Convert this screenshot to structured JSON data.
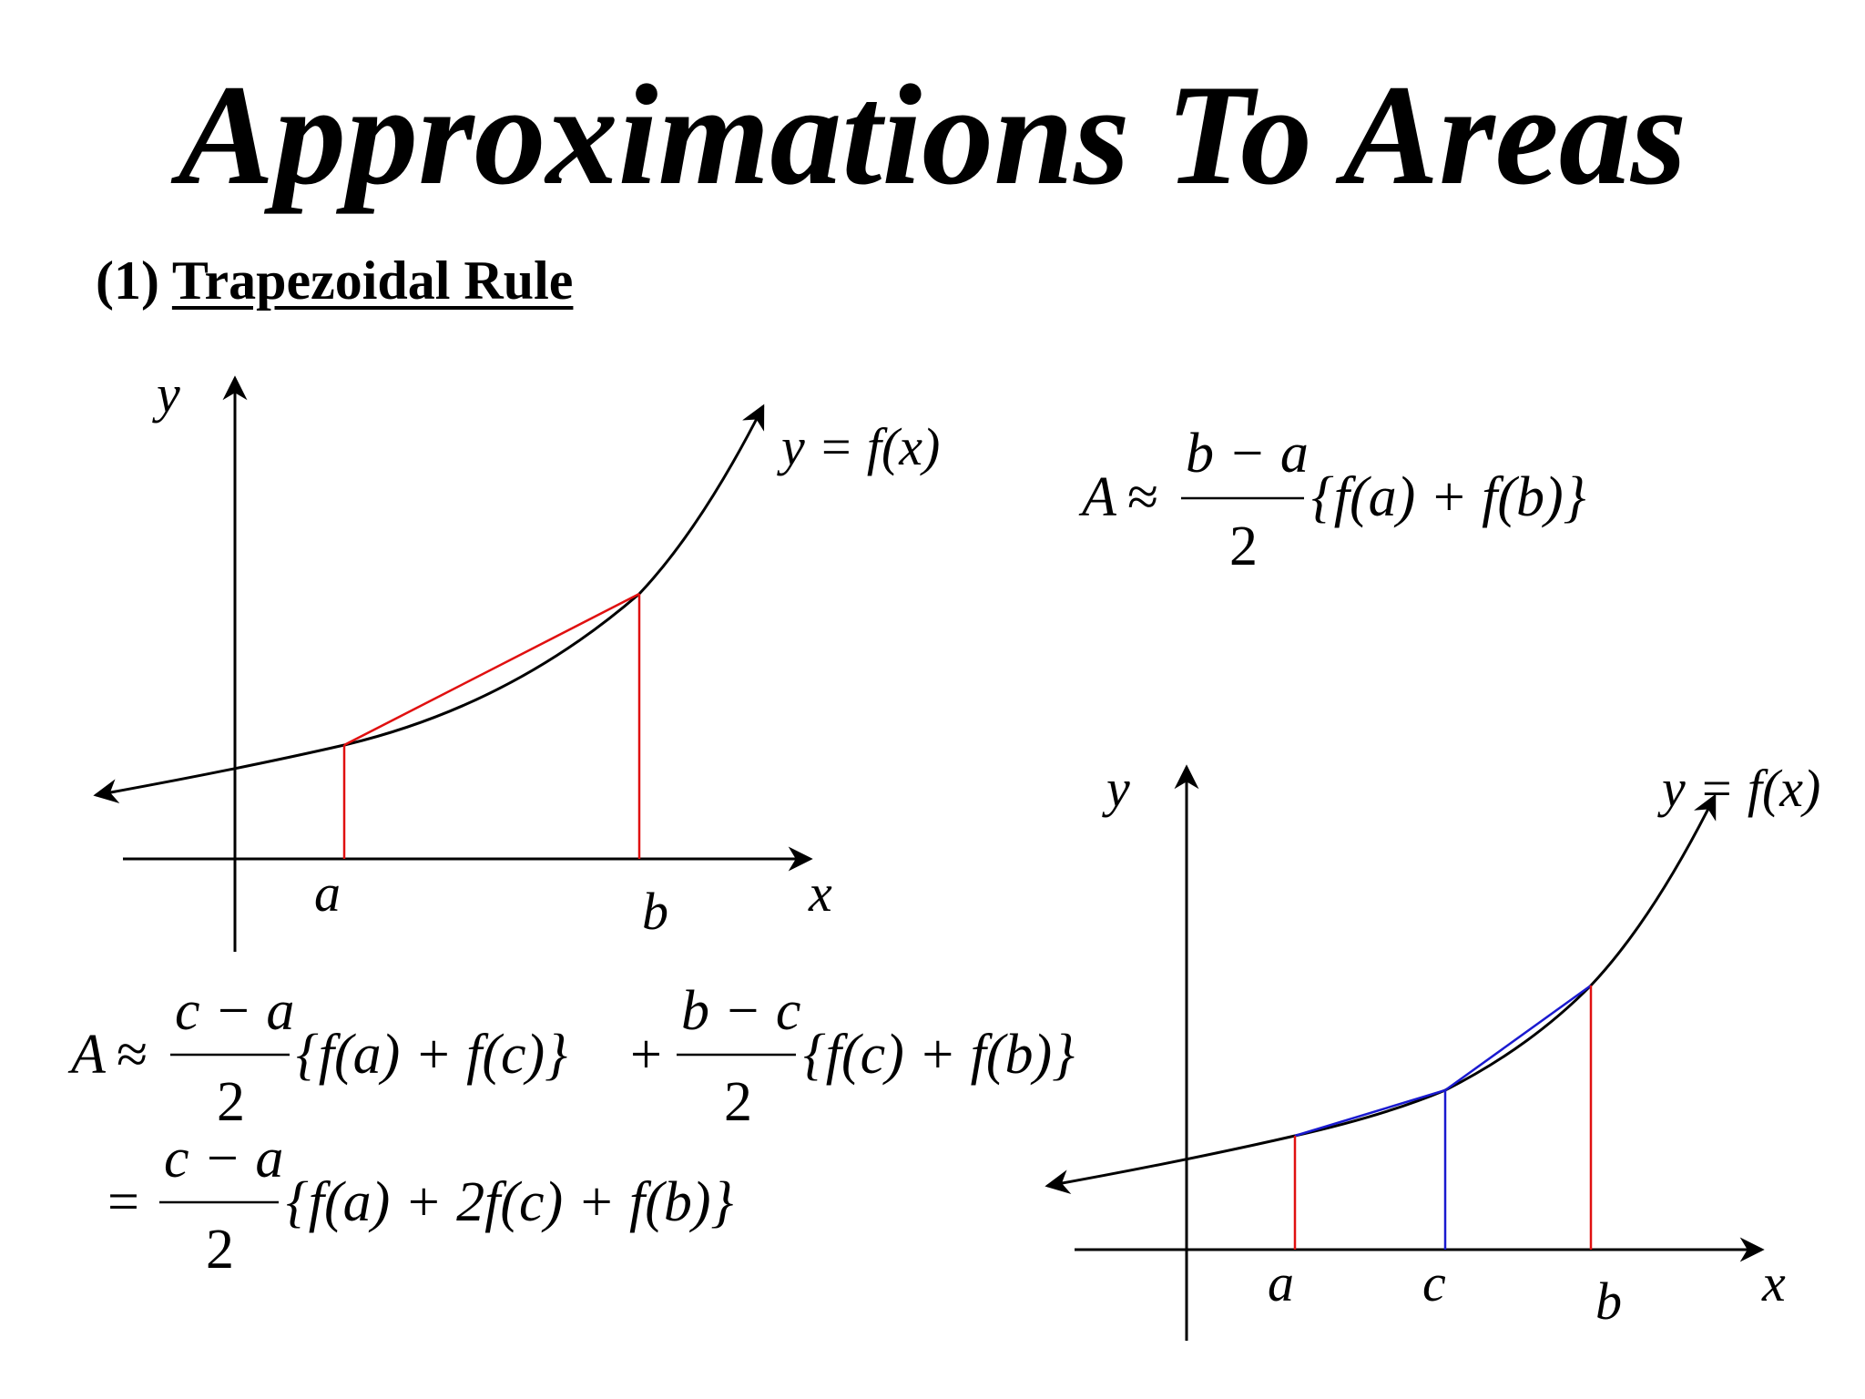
{
  "title": "Approximations To Areas",
  "section": {
    "number": "(1)",
    "heading": "Trapezoidal Rule"
  },
  "graph1": {
    "y_axis": "y",
    "x_axis": "x",
    "curve_label": "y = f(x)",
    "a": "a",
    "b": "b"
  },
  "graph2": {
    "y_axis": "y",
    "x_axis": "x",
    "curve_label": "y = f(x)",
    "a": "a",
    "c": "c",
    "b": "b"
  },
  "formula1": {
    "lhs": "A",
    "approx": "≈",
    "num": "b − a",
    "den": "2",
    "body": "{f(a) + f(b)}"
  },
  "formula2": {
    "lhs": "A",
    "approx": "≈",
    "num1": "c − a",
    "den1": "2",
    "body1": "{f(a) + f(c)}",
    "plus": "+",
    "num2": "b − c",
    "den2": "2",
    "body2": "{f(c) + f(b)}"
  },
  "formula3": {
    "eq": "=",
    "num": "c − a",
    "den": "2",
    "body": "{f(a) + 2f(c) + f(b)}"
  },
  "colors": {
    "chord": "#e01010",
    "midline": "#1a1ad0",
    "curve": "#000000"
  }
}
